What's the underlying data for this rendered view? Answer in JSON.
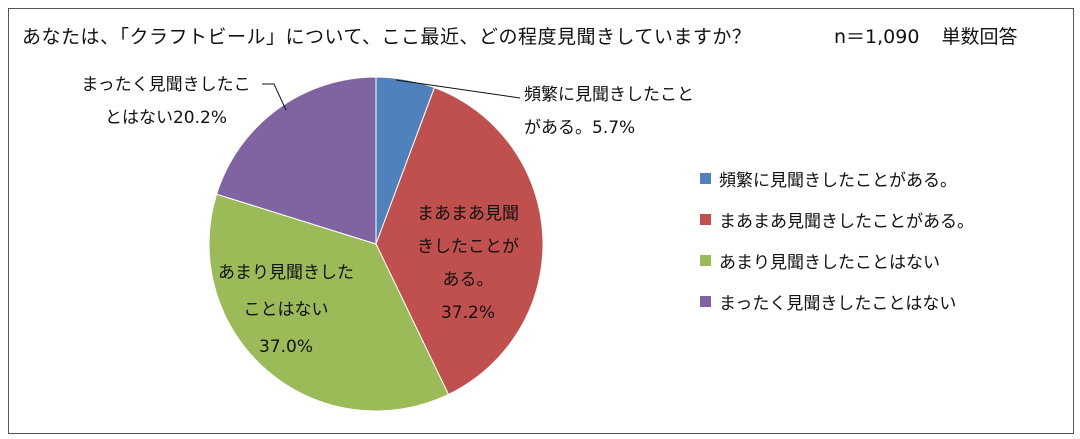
{
  "header": {
    "question": "あなたは、「クラフトビール」について、ここ最近、どの程度見聞きしていますか？",
    "sample": "n＝1,090",
    "answer_type": "単数回答"
  },
  "chart_data": {
    "type": "pie",
    "title": "あなたは、「クラフトビール」について、ここ最近、どの程度見聞きしていますか？",
    "start_angle_deg": 0,
    "direction": "clockwise",
    "legend_placement": "right",
    "slices": [
      {
        "label": "頻繁に見聞きしたことがある。",
        "value": 5.7,
        "color": "#4f81bd",
        "data_label_lines": [
          "頻繁に見聞きしたこと",
          "がある。5.7%"
        ]
      },
      {
        "label": "まあまあ見聞きしたことがある。",
        "value": 37.2,
        "color": "#c0504d",
        "data_label_lines": [
          "まあまあ見聞",
          "きしたことが",
          "ある。",
          "37.2%"
        ]
      },
      {
        "label": "あまり見聞きしたことはない",
        "value": 37.0,
        "color": "#9bbb59",
        "data_label_lines": [
          "あまり見聞きした",
          "ことはない",
          "37.0%"
        ]
      },
      {
        "label": "まったく見聞きしたことはない",
        "value": 20.2,
        "color": "#8064a2",
        "data_label_lines": [
          "まったく見聞きしたこ",
          "とはない20.2%"
        ]
      }
    ]
  }
}
